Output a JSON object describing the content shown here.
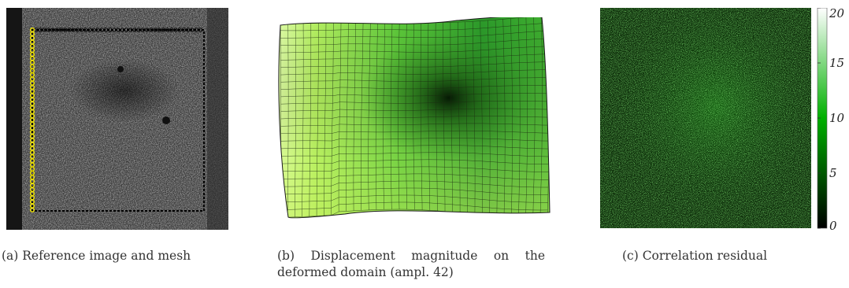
{
  "figure": {
    "panels": [
      {
        "id": "a",
        "caption": "(a) Reference image and mesh"
      },
      {
        "id": "b",
        "caption": "(b) Displacement magnitude on the deformed domain (ampl. 42)"
      },
      {
        "id": "c",
        "caption": "(c) Correlation residual"
      }
    ],
    "colorbar": {
      "ticks": [
        "0",
        "5",
        "10",
        "15",
        "20"
      ],
      "colors": {
        "low": "#000000",
        "mid": "#00b000",
        "high": "#ffffff"
      }
    },
    "mesh_colors": {
      "nodes_left": "#f2e600",
      "nodes_other": "#000000",
      "fill_light": "#d8ff8a",
      "fill_dark": "#0a2a06"
    }
  },
  "chart_data": {
    "type": "heatmap",
    "title": "",
    "colorbar_range": [
      0,
      20
    ],
    "colorbar_ticks": [
      0,
      5,
      10,
      15,
      20
    ]
  }
}
